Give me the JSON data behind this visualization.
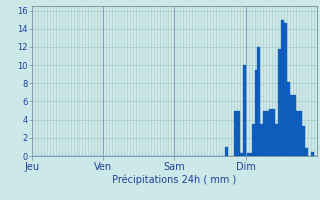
{
  "xlabel": "Précipitations 24h ( mm )",
  "ylim": [
    0,
    16.5
  ],
  "yticks": [
    0,
    2,
    4,
    6,
    8,
    10,
    12,
    14,
    16
  ],
  "background_color": "#cce8e8",
  "plot_bg_color": "#cce8e8",
  "grid_color": "#aac8c8",
  "bar_color": "#1060c0",
  "bar_edge_color": "#0848a8",
  "day_labels": [
    "Jeu",
    "Ven",
    "Sam",
    "Dim"
  ],
  "day_positions": [
    0,
    24,
    48,
    72
  ],
  "n_bars": 96,
  "values": [
    0,
    0,
    0,
    0,
    0,
    0,
    0,
    0,
    0,
    0,
    0,
    0,
    0,
    0,
    0,
    0,
    0,
    0,
    0,
    0,
    0,
    0,
    0,
    0,
    0,
    0,
    0,
    0,
    0,
    0,
    0,
    0,
    0,
    0,
    0,
    0,
    0,
    0,
    0,
    0,
    0,
    0,
    0,
    0,
    0,
    0,
    0,
    0,
    0,
    0,
    0,
    0,
    0,
    0,
    0,
    0,
    0,
    0,
    0,
    0,
    0,
    0,
    0,
    0,
    0,
    1,
    0,
    0,
    5,
    5,
    0.3,
    10,
    0.3,
    0.3,
    3.5,
    9.5,
    12,
    3.5,
    5,
    5,
    5.2,
    5.2,
    3.5,
    11.8,
    15,
    14.6,
    8.1,
    6.7,
    6.7,
    5,
    4.9,
    3.3,
    0.9,
    0,
    0.4,
    0
  ]
}
